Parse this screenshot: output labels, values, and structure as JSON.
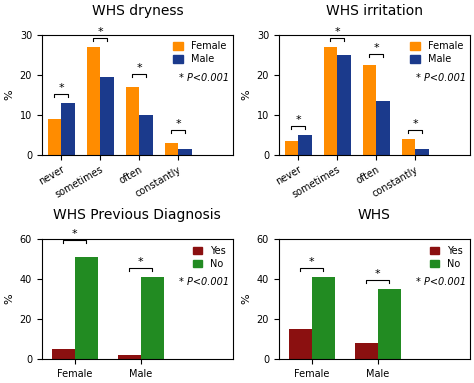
{
  "chart_data": [
    {
      "type": "bar",
      "title": "WHS dryness",
      "categories": [
        "never",
        "sometimes",
        "often",
        "constantly"
      ],
      "series": [
        {
          "name": "Female",
          "color": "#FF8C00",
          "values": [
            9,
            27,
            17,
            3
          ]
        },
        {
          "name": "Male",
          "color": "#1B3A8C",
          "values": [
            13,
            19.5,
            10,
            1.5
          ]
        }
      ],
      "y_label": "%",
      "ylim": [
        0,
        30
      ],
      "yticks": [
        0,
        10,
        20,
        30
      ],
      "legend": "upper right",
      "annotations": [
        {
          "text": "*",
          "category": "never",
          "y": 14.5
        },
        {
          "text": "*",
          "category": "sometimes",
          "y": 28.5
        },
        {
          "text": "*",
          "category": "often",
          "y": 19.5
        },
        {
          "text": "*",
          "category": "constantly",
          "y": 5.5
        },
        {
          "text": "* P<0.001"
        }
      ]
    },
    {
      "type": "bar",
      "title": "WHS irritation",
      "categories": [
        "never",
        "sometimes",
        "often",
        "constantly"
      ],
      "series": [
        {
          "name": "Female",
          "color": "#FF8C00",
          "values": [
            3.5,
            27,
            22.5,
            4
          ]
        },
        {
          "name": "Male",
          "color": "#1B3A8C",
          "values": [
            5,
            25,
            13.5,
            1.5
          ]
        }
      ],
      "y_label": "%",
      "ylim": [
        0,
        30
      ],
      "yticks": [
        0,
        10,
        20,
        30
      ],
      "legend": "upper right",
      "annotations": [
        {
          "text": "*",
          "category": "never",
          "y": 6.5
        },
        {
          "text": "*",
          "category": "sometimes",
          "y": 28.5
        },
        {
          "text": "*",
          "category": "often",
          "y": 24.5
        },
        {
          "text": "*",
          "category": "constantly",
          "y": 5.5
        },
        {
          "text": "* P<0.001"
        }
      ]
    },
    {
      "type": "bar",
      "title": "WHS Previous Diagnosis",
      "categories": [
        "Female",
        "Male"
      ],
      "series": [
        {
          "name": "Yes",
          "color": "#8B1010",
          "values": [
            5,
            2
          ]
        },
        {
          "name": "No",
          "color": "#228B22",
          "values": [
            51,
            41
          ]
        }
      ],
      "y_label": "%",
      "ylim": [
        0,
        60
      ],
      "yticks": [
        0,
        20,
        40,
        60
      ],
      "legend": "upper right",
      "annotations": [
        {
          "text": "*",
          "category": "Female",
          "y": 58
        },
        {
          "text": "*",
          "category": "Male",
          "y": 44
        },
        {
          "text": "* P<0.001"
        }
      ]
    },
    {
      "type": "bar",
      "title": "WHS",
      "categories": [
        "Female",
        "Male"
      ],
      "series": [
        {
          "name": "Yes",
          "color": "#8B1010",
          "values": [
            15,
            8
          ]
        },
        {
          "name": "No",
          "color": "#228B22",
          "values": [
            41,
            35
          ]
        }
      ],
      "y_label": "%",
      "ylim": [
        0,
        60
      ],
      "yticks": [
        0,
        20,
        40,
        60
      ],
      "legend": "upper right",
      "annotations": [
        {
          "text": "*",
          "category": "Female",
          "y": 44
        },
        {
          "text": "*",
          "category": "Male",
          "y": 38
        },
        {
          "text": "* P<0.001"
        }
      ]
    }
  ]
}
